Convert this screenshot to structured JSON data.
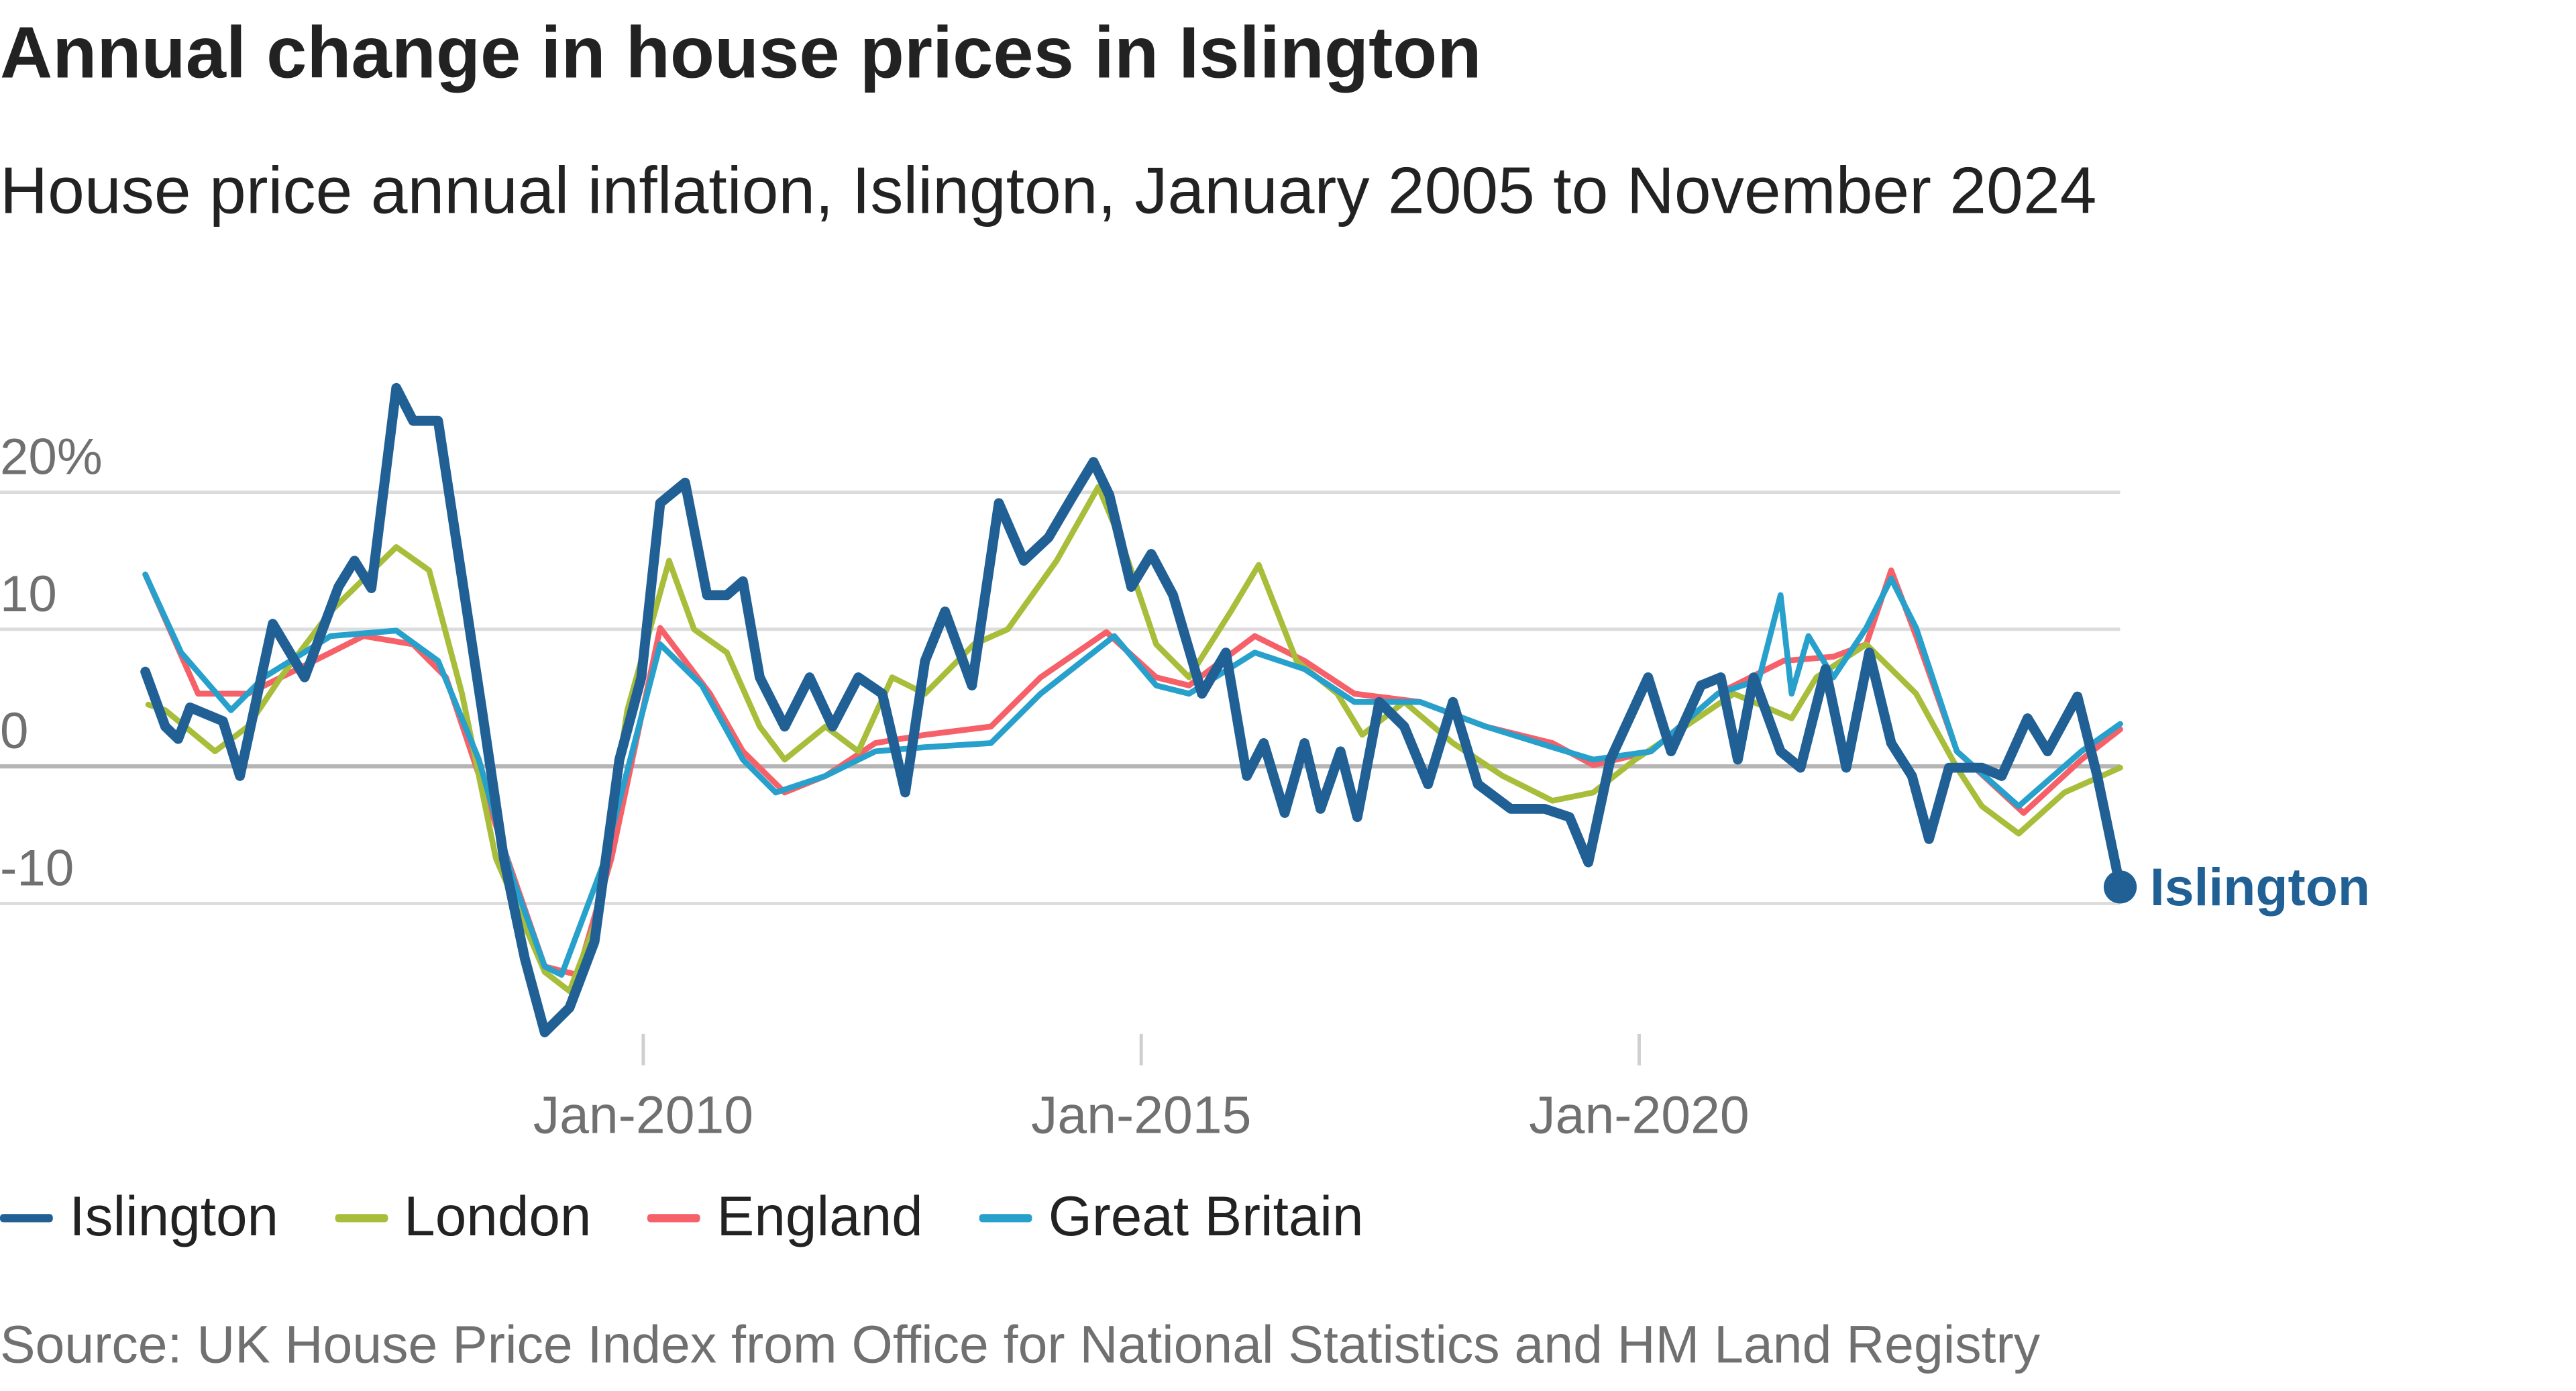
{
  "chart_data": {
    "type": "line",
    "title": "Annual change in house prices in Islington",
    "subtitle": "House price annual inflation, Islington, January 2005 to November 2024",
    "source": "Source: UK House Price Index from Office for National Statistics and HM Land Registry",
    "xlabel": "",
    "ylabel": "",
    "xlim": [
      2005.0,
      2024.83
    ],
    "ylim": [
      -20,
      28
    ],
    "grid": true,
    "y_ticks": [
      {
        "value": 20,
        "label": "20%"
      },
      {
        "value": 10,
        "label": "10"
      },
      {
        "value": 0,
        "label": "0"
      },
      {
        "value": -10,
        "label": "-10"
      }
    ],
    "x_ticks": [
      {
        "value": 2010,
        "label": "Jan-2010"
      },
      {
        "value": 2015,
        "label": "Jan-2015"
      },
      {
        "value": 2020,
        "label": "Jan-2020"
      }
    ],
    "legend_position": "bottom-left",
    "end_label": "Islington",
    "series": [
      {
        "name": "England",
        "color": "#f66068",
        "points": [
          [
            2005,
            14
          ],
          [
            2005.53,
            5.3
          ],
          [
            2006.03,
            5.3
          ],
          [
            2006.53,
            7.1
          ],
          [
            2007.19,
            9.5
          ],
          [
            2007.69,
            8.9
          ],
          [
            2008.02,
            6.5
          ],
          [
            2008.52,
            -4.3
          ],
          [
            2009.01,
            -14.6
          ],
          [
            2009.34,
            -15.2
          ],
          [
            2009.68,
            -6.7
          ],
          [
            2010.17,
            10.1
          ],
          [
            2010.67,
            5.3
          ],
          [
            2011,
            1.1
          ],
          [
            2011.42,
            -1.9
          ],
          [
            2011.83,
            -0.7
          ],
          [
            2012.33,
            1.7
          ],
          [
            2012.83,
            2.3
          ],
          [
            2013.49,
            2.9
          ],
          [
            2013.99,
            6.5
          ],
          [
            2014.65,
            9.8
          ],
          [
            2015.15,
            6.5
          ],
          [
            2015.48,
            5.9
          ],
          [
            2016.14,
            9.5
          ],
          [
            2016.64,
            7.7
          ],
          [
            2017.14,
            5.3
          ],
          [
            2017.8,
            4.7
          ],
          [
            2018.46,
            2.9
          ],
          [
            2019.13,
            1.7
          ],
          [
            2019.54,
            0.1
          ],
          [
            2020.12,
            1.1
          ],
          [
            2020.79,
            5.3
          ],
          [
            2021.45,
            7.7
          ],
          [
            2021.95,
            8
          ],
          [
            2022.28,
            8.9
          ],
          [
            2022.53,
            14.3
          ],
          [
            2022.78,
            9.5
          ],
          [
            2023.19,
            1.1
          ],
          [
            2023.86,
            -3.4
          ],
          [
            2024.44,
            0.5
          ],
          [
            2024.83,
            2.7
          ]
        ]
      },
      {
        "name": "London",
        "color": "#a8bd3a",
        "points": [
          [
            2005.03,
            4.5
          ],
          [
            2005.2,
            4.1
          ],
          [
            2005.7,
            1.1
          ],
          [
            2006.03,
            2.9
          ],
          [
            2006.36,
            6.5
          ],
          [
            2006.86,
            11.3
          ],
          [
            2007.52,
            16
          ],
          [
            2007.85,
            14.3
          ],
          [
            2008.18,
            5.3
          ],
          [
            2008.52,
            -6.7
          ],
          [
            2009.01,
            -15
          ],
          [
            2009.26,
            -16.4
          ],
          [
            2009.51,
            -11.6
          ],
          [
            2009.84,
            4.1
          ],
          [
            2010.26,
            15
          ],
          [
            2010.51,
            10
          ],
          [
            2010.84,
            8.3
          ],
          [
            2011.17,
            2.9
          ],
          [
            2011.42,
            0.5
          ],
          [
            2011.83,
            2.9
          ],
          [
            2012.16,
            1.1
          ],
          [
            2012.5,
            6.5
          ],
          [
            2012.83,
            5.3
          ],
          [
            2013.32,
            8.9
          ],
          [
            2013.66,
            10
          ],
          [
            2014.15,
            15
          ],
          [
            2014.57,
            20.4
          ],
          [
            2014.82,
            16
          ],
          [
            2015.15,
            8.9
          ],
          [
            2015.48,
            6.5
          ],
          [
            2015.9,
            11.3
          ],
          [
            2016.18,
            14.7
          ],
          [
            2016.56,
            7.7
          ],
          [
            2016.97,
            5.3
          ],
          [
            2017.22,
            2.3
          ],
          [
            2017.64,
            4.7
          ],
          [
            2018.13,
            1.7
          ],
          [
            2018.63,
            -0.7
          ],
          [
            2019.13,
            -2.5
          ],
          [
            2019.54,
            -1.9
          ],
          [
            2019.96,
            0.5
          ],
          [
            2020.46,
            2.9
          ],
          [
            2020.95,
            5.3
          ],
          [
            2021.53,
            3.5
          ],
          [
            2021.78,
            6.5
          ],
          [
            2022.28,
            8.9
          ],
          [
            2022.78,
            5.3
          ],
          [
            2023.19,
            -0.1
          ],
          [
            2023.44,
            -2.9
          ],
          [
            2023.81,
            -4.9
          ],
          [
            2024.27,
            -1.9
          ],
          [
            2024.83,
            -0.1
          ]
        ]
      },
      {
        "name": "Great Britain",
        "color": "#27a0cc",
        "points": [
          [
            2005,
            14
          ],
          [
            2005.36,
            8.3
          ],
          [
            2005.86,
            4.1
          ],
          [
            2006.19,
            6.5
          ],
          [
            2006.86,
            9.5
          ],
          [
            2007.52,
            9.9
          ],
          [
            2007.94,
            7.7
          ],
          [
            2008.35,
            0.5
          ],
          [
            2008.68,
            -8
          ],
          [
            2009.01,
            -14.6
          ],
          [
            2009.18,
            -15.2
          ],
          [
            2009.59,
            -7.3
          ],
          [
            2010.17,
            8.9
          ],
          [
            2010.59,
            5.9
          ],
          [
            2011,
            0.5
          ],
          [
            2011.33,
            -1.9
          ],
          [
            2011.83,
            -0.7
          ],
          [
            2012.33,
            1.1
          ],
          [
            2012.83,
            1.4
          ],
          [
            2013.49,
            1.7
          ],
          [
            2013.99,
            5.3
          ],
          [
            2014.73,
            9.5
          ],
          [
            2015.15,
            5.9
          ],
          [
            2015.48,
            5.3
          ],
          [
            2016.14,
            8.3
          ],
          [
            2016.64,
            7.1
          ],
          [
            2017.14,
            4.7
          ],
          [
            2017.8,
            4.7
          ],
          [
            2018.46,
            2.9
          ],
          [
            2019.13,
            1.4
          ],
          [
            2019.54,
            0.5
          ],
          [
            2020.12,
            1.1
          ],
          [
            2020.79,
            5.3
          ],
          [
            2021.2,
            6.3
          ],
          [
            2021.42,
            12.5
          ],
          [
            2021.53,
            5.3
          ],
          [
            2021.7,
            9.5
          ],
          [
            2021.95,
            6.5
          ],
          [
            2022.28,
            10.1
          ],
          [
            2022.53,
            13.7
          ],
          [
            2022.78,
            10.1
          ],
          [
            2023.19,
            1.1
          ],
          [
            2023.81,
            -2.9
          ],
          [
            2024.44,
            1.1
          ],
          [
            2024.83,
            3.1
          ]
        ]
      },
      {
        "name": "Islington",
        "color": "#206095",
        "points": [
          [
            2005,
            6.9
          ],
          [
            2005.2,
            2.9
          ],
          [
            2005.33,
            2
          ],
          [
            2005.45,
            4.3
          ],
          [
            2005.78,
            3.3
          ],
          [
            2005.95,
            -0.7
          ],
          [
            2006.28,
            10.4
          ],
          [
            2006.6,
            6.5
          ],
          [
            2006.94,
            13.1
          ],
          [
            2007.1,
            15
          ],
          [
            2007.27,
            13
          ],
          [
            2007.52,
            27.6
          ],
          [
            2007.69,
            25.2
          ],
          [
            2007.94,
            25.2
          ],
          [
            2008.18,
            13.7
          ],
          [
            2008.38,
            4.1
          ],
          [
            2008.6,
            -6.7
          ],
          [
            2008.81,
            -14
          ],
          [
            2009.01,
            -19.4
          ],
          [
            2009.26,
            -17.6
          ],
          [
            2009.51,
            -12.8
          ],
          [
            2009.76,
            0.5
          ],
          [
            2009.98,
            6.5
          ],
          [
            2010.17,
            19.2
          ],
          [
            2010.42,
            20.7
          ],
          [
            2010.64,
            12.5
          ],
          [
            2010.84,
            12.5
          ],
          [
            2011,
            13.5
          ],
          [
            2011.17,
            6.5
          ],
          [
            2011.42,
            2.9
          ],
          [
            2011.67,
            6.5
          ],
          [
            2011.9,
            2.9
          ],
          [
            2012.16,
            6.5
          ],
          [
            2012.4,
            5.3
          ],
          [
            2012.63,
            -1.9
          ],
          [
            2012.83,
            7.7
          ],
          [
            2013.03,
            11.3
          ],
          [
            2013.3,
            5.9
          ],
          [
            2013.57,
            19.2
          ],
          [
            2013.82,
            15
          ],
          [
            2014.07,
            16.7
          ],
          [
            2014.32,
            19.8
          ],
          [
            2014.52,
            22.2
          ],
          [
            2014.68,
            19.8
          ],
          [
            2014.9,
            13.1
          ],
          [
            2015.1,
            15.5
          ],
          [
            2015.32,
            12.5
          ],
          [
            2015.61,
            5.3
          ],
          [
            2015.85,
            8.3
          ],
          [
            2016.06,
            -0.7
          ],
          [
            2016.23,
            1.7
          ],
          [
            2016.44,
            -3.4
          ],
          [
            2016.64,
            1.7
          ],
          [
            2016.8,
            -3.1
          ],
          [
            2017,
            1.1
          ],
          [
            2017.17,
            -3.7
          ],
          [
            2017.39,
            4.7
          ],
          [
            2017.64,
            2.9
          ],
          [
            2017.88,
            -1.3
          ],
          [
            2018.13,
            4.7
          ],
          [
            2018.38,
            -1.3
          ],
          [
            2018.71,
            -3.1
          ],
          [
            2019.05,
            -3.1
          ],
          [
            2019.3,
            -3.7
          ],
          [
            2019.49,
            -7
          ],
          [
            2019.71,
            0.5
          ],
          [
            2020.09,
            6.5
          ],
          [
            2020.32,
            1.1
          ],
          [
            2020.62,
            5.9
          ],
          [
            2020.82,
            6.5
          ],
          [
            2020.99,
            0.5
          ],
          [
            2021.15,
            6.5
          ],
          [
            2021.42,
            1.1
          ],
          [
            2021.62,
            -0.1
          ],
          [
            2021.87,
            7.1
          ],
          [
            2022.08,
            -0.1
          ],
          [
            2022.31,
            8.3
          ],
          [
            2022.53,
            1.7
          ],
          [
            2022.74,
            -0.7
          ],
          [
            2022.91,
            -5.3
          ],
          [
            2023.11,
            -0.1
          ],
          [
            2023.44,
            -0.1
          ],
          [
            2023.64,
            -0.7
          ],
          [
            2023.9,
            3.5
          ],
          [
            2024.1,
            1.1
          ],
          [
            2024.4,
            5.1
          ],
          [
            2024.6,
            -0.7
          ],
          [
            2024.83,
            -8.8
          ]
        ]
      }
    ],
    "legend": [
      {
        "name": "Islington",
        "color": "#206095"
      },
      {
        "name": "London",
        "color": "#a8bd3a"
      },
      {
        "name": "England",
        "color": "#f66068"
      },
      {
        "name": "Great Britain",
        "color": "#27a0cc"
      }
    ]
  }
}
